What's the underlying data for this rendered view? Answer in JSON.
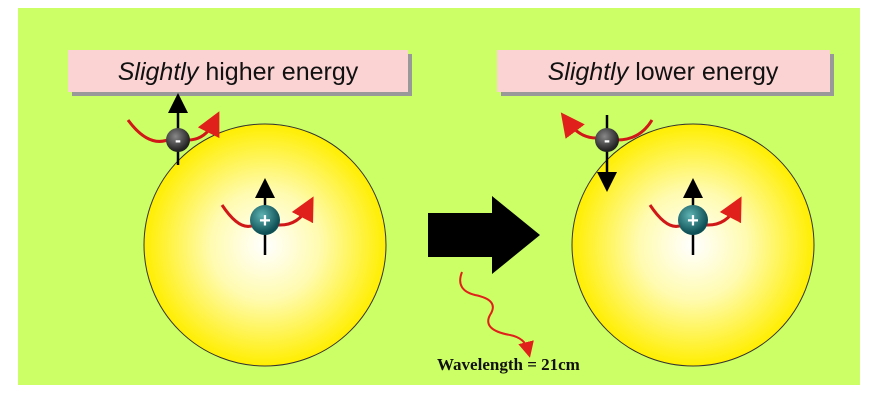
{
  "panels": [
    {
      "label_emphasis": "Slightly",
      "label_rest": "higher energy",
      "electron_sign": "-",
      "proton_sign": "+"
    },
    {
      "label_emphasis": "Slightly",
      "label_rest": "lower energy",
      "electron_sign": "-",
      "proton_sign": "+"
    }
  ],
  "wavelength_label": "Wavelength = 21cm"
}
